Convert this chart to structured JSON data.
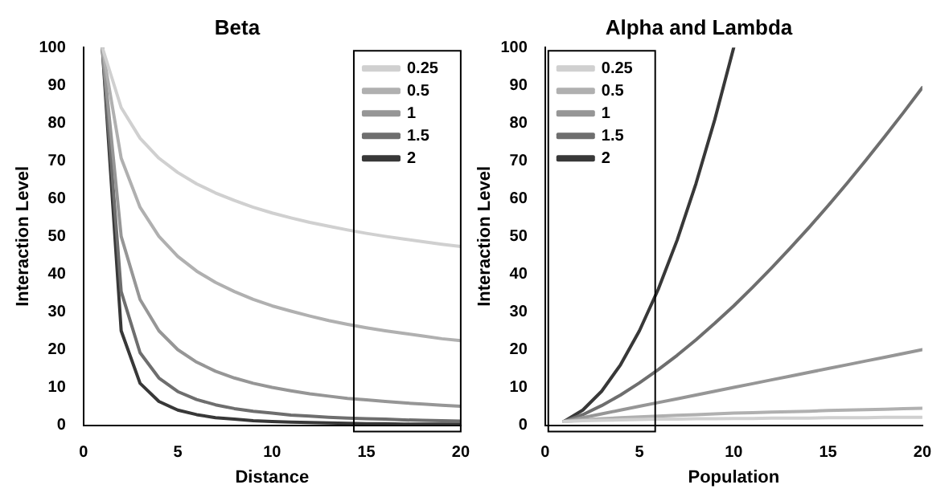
{
  "chart_data": [
    {
      "type": "line",
      "title": "Beta",
      "xlabel": "Distance",
      "ylabel": "Interaction Level",
      "x": [
        1,
        2,
        3,
        4,
        5,
        6,
        7,
        8,
        9,
        10,
        11,
        12,
        13,
        14,
        15,
        16,
        17,
        18,
        19,
        20
      ],
      "xlim": [
        0,
        20
      ],
      "xticks": [
        0,
        5,
        10,
        15,
        20
      ],
      "ylim": [
        0,
        100
      ],
      "yticks": [
        0,
        10,
        20,
        30,
        40,
        50,
        60,
        70,
        80,
        90,
        100
      ],
      "grid": false,
      "legend": "top right",
      "marker": "none",
      "series": [
        {
          "name": "0.25",
          "color": "#d0d0d0",
          "values": [
            100,
            84.1,
            76.0,
            70.7,
            66.9,
            63.9,
            61.5,
            59.5,
            57.7,
            56.2,
            54.9,
            53.7,
            52.7,
            51.7,
            50.8,
            50.0,
            49.3,
            48.6,
            47.9,
            47.3
          ]
        },
        {
          "name": "0.5",
          "color": "#b0b0b0",
          "values": [
            100,
            70.7,
            57.7,
            50,
            44.7,
            40.8,
            37.8,
            35.4,
            33.3,
            31.6,
            30.2,
            28.9,
            27.7,
            26.7,
            25.8,
            25,
            24.3,
            23.6,
            22.9,
            22.4
          ]
        },
        {
          "name": "1",
          "color": "#969696",
          "values": [
            100,
            50,
            33.3,
            25,
            20,
            16.7,
            14.3,
            12.5,
            11.1,
            10,
            9.1,
            8.3,
            7.7,
            7.1,
            6.7,
            6.3,
            5.9,
            5.6,
            5.3,
            5
          ]
        },
        {
          "name": "1.5",
          "color": "#6e6e6e",
          "values": [
            100,
            35.4,
            19.2,
            12.5,
            8.9,
            6.8,
            5.4,
            4.4,
            3.7,
            3.2,
            2.7,
            2.4,
            2.1,
            1.9,
            1.7,
            1.6,
            1.4,
            1.3,
            1.2,
            1.1
          ]
        },
        {
          "name": "2",
          "color": "#383838",
          "values": [
            100,
            25,
            11.1,
            6.3,
            4,
            2.8,
            2,
            1.6,
            1.2,
            1,
            0.8,
            0.7,
            0.6,
            0.5,
            0.4,
            0.4,
            0.3,
            0.3,
            0.3,
            0.3
          ]
        }
      ]
    },
    {
      "type": "line",
      "title": "Alpha and Lambda",
      "xlabel": "Population",
      "ylabel": "Interaction Level",
      "x": [
        1,
        2,
        3,
        4,
        5,
        6,
        7,
        8,
        9,
        10,
        11,
        12,
        13,
        14,
        15,
        16,
        17,
        18,
        19,
        20
      ],
      "xlim": [
        0,
        20
      ],
      "xticks": [
        0,
        5,
        10,
        15,
        20
      ],
      "ylim": [
        0,
        100
      ],
      "yticks": [
        0,
        10,
        20,
        30,
        40,
        50,
        60,
        70,
        80,
        90,
        100
      ],
      "grid": false,
      "legend": "top left",
      "marker": "none",
      "series": [
        {
          "name": "0.25",
          "color": "#d0d0d0",
          "values": [
            1,
            1.2,
            1.3,
            1.4,
            1.5,
            1.6,
            1.6,
            1.7,
            1.7,
            1.8,
            1.8,
            1.9,
            1.9,
            1.9,
            2,
            2,
            2,
            2.1,
            2.1,
            2.1
          ]
        },
        {
          "name": "0.5",
          "color": "#b0b0b0",
          "values": [
            1,
            1.4,
            1.7,
            2,
            2.2,
            2.4,
            2.6,
            2.8,
            3,
            3.2,
            3.3,
            3.5,
            3.6,
            3.7,
            3.9,
            4,
            4.1,
            4.2,
            4.4,
            4.5
          ]
        },
        {
          "name": "1",
          "color": "#969696",
          "values": [
            1,
            2,
            3,
            4,
            5,
            6,
            7,
            8,
            9,
            10,
            11,
            12,
            13,
            14,
            15,
            16,
            17,
            18,
            19,
            20
          ]
        },
        {
          "name": "1.5",
          "color": "#6e6e6e",
          "values": [
            1,
            2.8,
            5.2,
            8,
            11.2,
            14.7,
            18.5,
            22.6,
            27,
            31.6,
            36.5,
            41.6,
            46.9,
            52.4,
            58.1,
            64,
            70.1,
            76.4,
            82.8,
            89.4
          ]
        },
        {
          "name": "2",
          "color": "#383838",
          "values": [
            1,
            4,
            9,
            16,
            25,
            36,
            49,
            64,
            81,
            100,
            null,
            null,
            null,
            null,
            null,
            null,
            null,
            null,
            null,
            null
          ]
        }
      ]
    }
  ]
}
